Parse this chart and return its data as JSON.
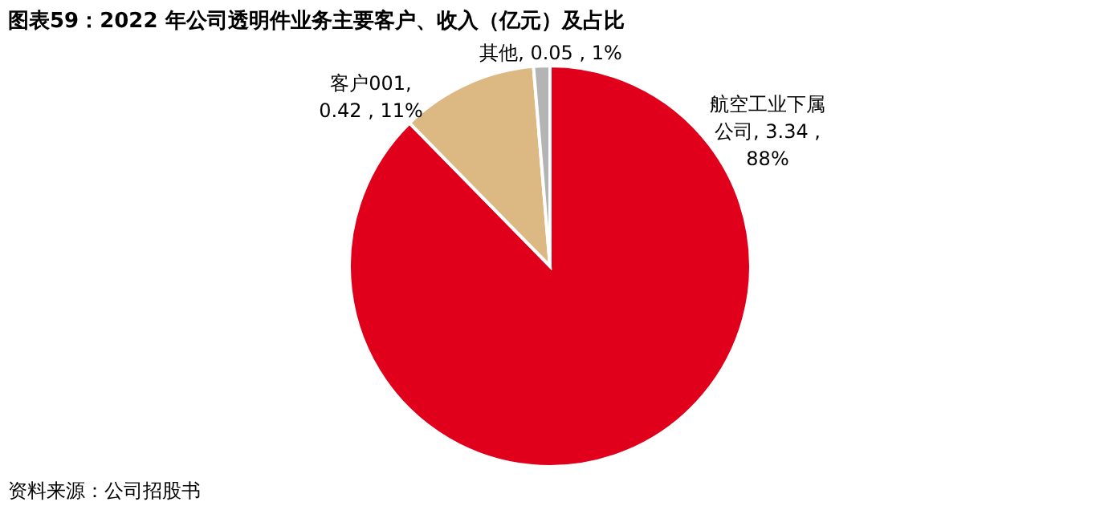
{
  "chart_data": {
    "type": "pie",
    "title": "图表59：2022 年公司透明件业务主要客户、收入（亿元）及占比",
    "categories": [
      "航空工业下属公司",
      "客户001",
      "其他"
    ],
    "values": [
      3.34,
      0.42,
      0.05
    ],
    "value_labels": [
      ", 3.34 , 88%",
      ", 0.42 , 11%",
      ", 0.05 , 1%"
    ],
    "colors": [
      "#e0001b",
      "#dcb882",
      "#b4b4b4"
    ],
    "legend": false,
    "annotations": [
      "资料来源：公司招股书"
    ]
  }
}
